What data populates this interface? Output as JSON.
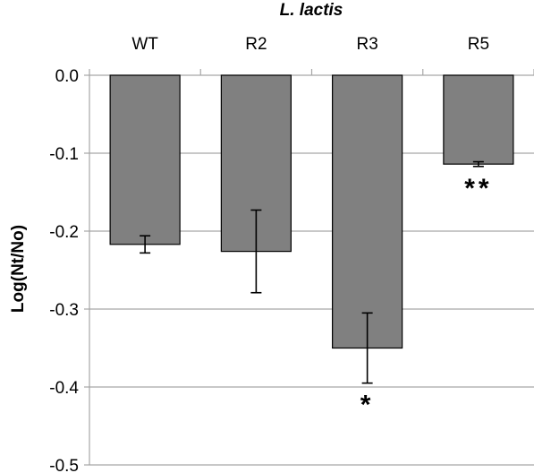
{
  "chart_data": {
    "type": "bar",
    "title": "L. lactis",
    "xlabel": "",
    "ylabel": "Log(Nt/No)",
    "categories": [
      "WT",
      "R2",
      "R3",
      "R5"
    ],
    "values": [
      -0.217,
      -0.226,
      -0.35,
      -0.114
    ],
    "error": [
      0.011,
      0.053,
      0.045,
      0.003
    ],
    "annotations": [
      "",
      "",
      "*",
      "**"
    ],
    "ylim": [
      -0.5,
      0.0
    ],
    "yticks": [
      0.0,
      -0.1,
      -0.2,
      -0.3,
      -0.4,
      -0.5
    ],
    "ytick_labels": [
      "0.0",
      "-0.1",
      "-0.2",
      "-0.3",
      "-0.4",
      "-0.5"
    ],
    "grid": true,
    "legend": "none",
    "bar_color": "#808080",
    "bar_edge_color": "#000000",
    "grid_color": "#a6a6a6"
  }
}
